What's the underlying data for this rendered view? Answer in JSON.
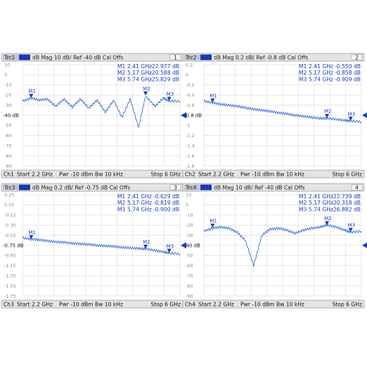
{
  "panels": [
    {
      "id": "1",
      "badge": "Trc1",
      "tag": "S21",
      "header_text": "dB Mag 10 dB/ Ref -40 dB Cal Offs",
      "ref_label": "-40 dB",
      "ticks": [
        "10",
        "0",
        "-10",
        "-20",
        "-30",
        "-40",
        "-50",
        "-60",
        "-70",
        "-80",
        "-90"
      ],
      "markers": [
        {
          "name": "M1",
          "freq": "2.41 GHz",
          "value": "-22.977 dB"
        },
        {
          "name": "M2",
          "freq": "5.17 GHz",
          "value": "-20.588 dB"
        },
        {
          "name": "M3",
          "freq": "5.74 GHz",
          "value": "-25.829 dB"
        }
      ],
      "footer": {
        "badge": "Ch1",
        "start": "Start 2.2 GHz",
        "pwr": "Pwr -10 dBm",
        "bw": "Bw 10 kHz",
        "stop": "Stop 6 GHz"
      }
    },
    {
      "id": "2",
      "badge": "Trc2",
      "tag": "S21",
      "header_text": "dB Mag 0.2 dB/ Ref -0.8 dB Cal Offs",
      "ref_label": "-0.8 dB",
      "ticks": [
        "0.2",
        "0",
        "-0.2",
        "-0.4",
        "-0.6",
        "-0.8",
        "-1",
        "-1.2",
        "-1.4",
        "-1.6",
        "-1.8"
      ],
      "markers": [
        {
          "name": "M1",
          "freq": "2.41 GHz",
          "value": "-0.550 dB"
        },
        {
          "name": "M2",
          "freq": "5.17 GHz",
          "value": "-0.858 dB"
        },
        {
          "name": "M3",
          "freq": "5.74 GHz",
          "value": "-0.909 dB"
        }
      ],
      "footer": {
        "badge": "Ch2",
        "start": "Start 2.2 GHz",
        "pwr": "Pwr -10 dBm",
        "bw": "Bw 10 kHz",
        "stop": "Stop 6 GHz"
      }
    },
    {
      "id": "3",
      "badge": "Trc3",
      "tag": "S21",
      "header_text": "dB Mag 0.2 dB/ Ref -0.75 dB Cal Offs",
      "ref_label": "-0.75 dB",
      "ticks": [
        "0.25",
        "0.05",
        "-0.15",
        "-0.35",
        "-0.55",
        "-0.75",
        "-0.95",
        "-1.15",
        "-1.35",
        "-1.55",
        "-1.75"
      ],
      "markers": [
        {
          "name": "M1",
          "freq": "2.41 GHz",
          "value": "-0.629 dB"
        },
        {
          "name": "M2",
          "freq": "5.17 GHz",
          "value": "-0.819 dB"
        },
        {
          "name": "M3",
          "freq": "5.74 GHz",
          "value": "-0.900 dB"
        }
      ],
      "footer": {
        "badge": "Ch3",
        "start": "Start 2.2 GHz",
        "pwr": "Pwr -10 dBm",
        "bw": "Bw 10 kHz",
        "stop": "Stop 6 GHz"
      }
    },
    {
      "id": "4",
      "badge": "Trc4",
      "tag": "S21",
      "header_text": "dB Mag 10 dB/ Ref -40 dB Cal Offs",
      "ref_label": "-40 dB",
      "ticks": [
        "10",
        "0",
        "-10",
        "-20",
        "-30",
        "-40",
        "-50",
        "-60",
        "-70",
        "-80",
        "-90"
      ],
      "markers": [
        {
          "name": "M1",
          "freq": "2.41 GHz",
          "value": "-22.739 dB"
        },
        {
          "name": "M2",
          "freq": "5.17 GHz",
          "value": "-20.318 dB"
        },
        {
          "name": "M3",
          "freq": "5.74 GHz",
          "value": "-26.882 dB"
        }
      ],
      "footer": {
        "badge": "Ch4",
        "start": "Start 2.2 GHz",
        "pwr": "Pwr -10 dBm",
        "bw": "Bw 10 kHz",
        "stop": "Stop 6 GHz"
      }
    }
  ],
  "colors": {
    "trace": "#3a6fe0",
    "marker": "#1a3cc8",
    "badge": "#1c3fd4",
    "grid": "#cfcfcf",
    "header_bg": "#e4e4e4"
  },
  "chart_data": [
    {
      "type": "line",
      "xlabel": "",
      "ylabel": "",
      "xlim": [
        2.2,
        6.0
      ],
      "ylim": [
        -90,
        10
      ],
      "series": [
        {
          "x": [
            2.2,
            2.41,
            2.6,
            2.8,
            3.0,
            3.2,
            3.4,
            3.6,
            3.8,
            4.0,
            4.2,
            4.4,
            4.6,
            4.8,
            5.0,
            5.17,
            5.4,
            5.6,
            5.74,
            6.0
          ],
          "values": [
            -26,
            -23,
            -25,
            -24,
            -31,
            -24,
            -32,
            -24,
            -33,
            -25,
            -37,
            -25,
            -42,
            -24,
            -52,
            -21,
            -31,
            -23,
            -26,
            -26
          ]
        }
      ]
    },
    {
      "type": "line",
      "xlabel": "",
      "ylabel": "",
      "xlim": [
        2.2,
        6.0
      ],
      "ylim": [
        -1.8,
        0.2
      ],
      "series": [
        {
          "x": [
            2.2,
            2.41,
            2.6,
            2.8,
            3.0,
            3.2,
            3.4,
            3.6,
            3.8,
            4.0,
            4.2,
            4.4,
            4.6,
            4.8,
            5.0,
            5.17,
            5.4,
            5.6,
            5.74,
            6.0
          ],
          "values": [
            -0.52,
            -0.55,
            -0.58,
            -0.6,
            -0.62,
            -0.65,
            -0.68,
            -0.7,
            -0.72,
            -0.75,
            -0.77,
            -0.8,
            -0.82,
            -0.84,
            -0.86,
            -0.86,
            -0.88,
            -0.9,
            -0.91,
            -0.93
          ]
        }
      ]
    },
    {
      "type": "line",
      "xlabel": "",
      "ylabel": "",
      "xlim": [
        2.2,
        6.0
      ],
      "ylim": [
        -1.75,
        0.25
      ],
      "series": [
        {
          "x": [
            2.2,
            2.41,
            2.6,
            2.8,
            3.0,
            3.2,
            3.4,
            3.6,
            3.8,
            4.0,
            4.2,
            4.4,
            4.6,
            4.8,
            5.0,
            5.17,
            5.4,
            5.6,
            5.74,
            6.0
          ],
          "values": [
            -0.6,
            -0.63,
            -0.64,
            -0.66,
            -0.68,
            -0.69,
            -0.71,
            -0.72,
            -0.73,
            -0.75,
            -0.76,
            -0.77,
            -0.79,
            -0.8,
            -0.81,
            -0.82,
            -0.85,
            -0.88,
            -0.9,
            -0.92
          ]
        }
      ]
    },
    {
      "type": "line",
      "xlabel": "",
      "ylabel": "",
      "xlim": [
        2.2,
        6.0
      ],
      "ylim": [
        -90,
        10
      ],
      "series": [
        {
          "x": [
            2.2,
            2.41,
            2.6,
            2.8,
            3.0,
            3.2,
            3.4,
            3.6,
            3.8,
            4.0,
            4.2,
            4.4,
            4.6,
            4.8,
            5.0,
            5.17,
            5.4,
            5.6,
            5.74,
            6.0
          ],
          "values": [
            -26,
            -23,
            -22,
            -23,
            -27,
            -35,
            -60,
            -30,
            -24,
            -23,
            -25,
            -28,
            -25,
            -23,
            -22,
            -20,
            -22,
            -25,
            -27,
            -26
          ]
        }
      ]
    }
  ]
}
